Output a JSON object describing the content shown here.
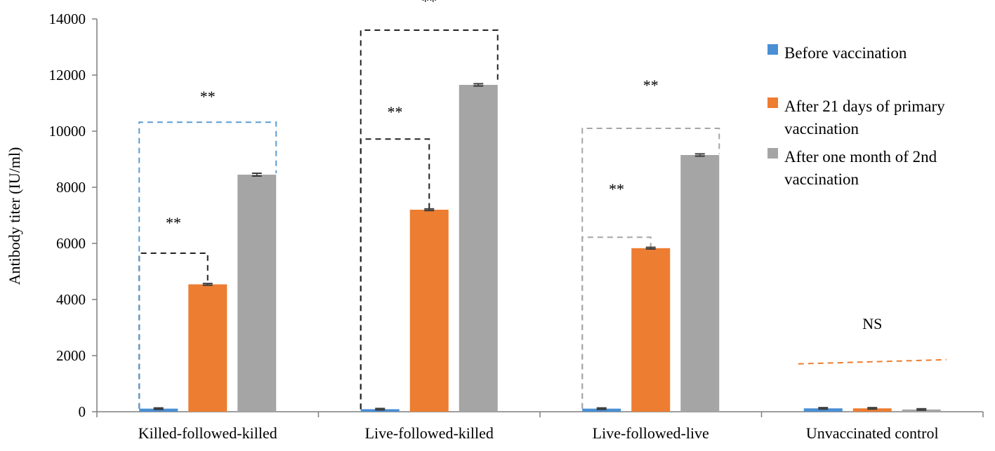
{
  "chart_data": {
    "type": "bar",
    "title": "",
    "xlabel": "",
    "ylabel": "Antibody titer (IU/ml)",
    "ylim": [
      0,
      14000
    ],
    "yticks": [
      0,
      2000,
      4000,
      6000,
      8000,
      10000,
      12000,
      14000
    ],
    "grid": false,
    "legend_position": "right",
    "categories": [
      "Killed-followed-killed",
      "Live-followed-killed",
      "Live-followed-live",
      "Unvaccinated control"
    ],
    "series": [
      {
        "name": "Before vaccination",
        "color": "#4a8fd4",
        "values": [
          110,
          90,
          110,
          120
        ],
        "errors": [
          25,
          25,
          25,
          25
        ]
      },
      {
        "name": "After 21 days of primary vaccination",
        "color": "#ed7d31",
        "values": [
          4540,
          7200,
          5830,
          120
        ],
        "errors": [
          30,
          30,
          30,
          25
        ]
      },
      {
        "name": "After one month of 2nd vaccination",
        "color": "#a5a5a5",
        "values": [
          8450,
          11650,
          9150,
          80
        ],
        "errors": [
          50,
          40,
          40,
          25
        ]
      }
    ],
    "annotations": [
      {
        "text": "**",
        "group": 0,
        "from_series": 0,
        "to_series": 1,
        "level": 5650,
        "color": "#222222",
        "label_level": 6550
      },
      {
        "text": "**",
        "group": 0,
        "from_series": 0,
        "to_series": 2,
        "level": 10320,
        "color": "#5b9bd5",
        "label_level": 11050
      },
      {
        "text": "**",
        "group": 1,
        "from_series": 0,
        "to_series": 1,
        "level": 9720,
        "color": "#222222",
        "label_level": 10500
      },
      {
        "text": "**",
        "group": 1,
        "from_series": 0,
        "to_series": 2,
        "level": 13600,
        "color": "#222222",
        "label_level": 14450
      },
      {
        "text": "**",
        "group": 2,
        "from_series": 0,
        "to_series": 1,
        "level": 6220,
        "color": "#a5a5a5",
        "label_level": 7750
      },
      {
        "text": "**",
        "group": 2,
        "from_series": 0,
        "to_series": 2,
        "level": 10100,
        "color": "#a5a5a5",
        "label_level": 11450
      },
      {
        "text": "NS",
        "group": 3,
        "from_series": 0,
        "to_series": 2,
        "level": 1780,
        "color": "#ed7d31",
        "label_level": 2950
      }
    ]
  }
}
